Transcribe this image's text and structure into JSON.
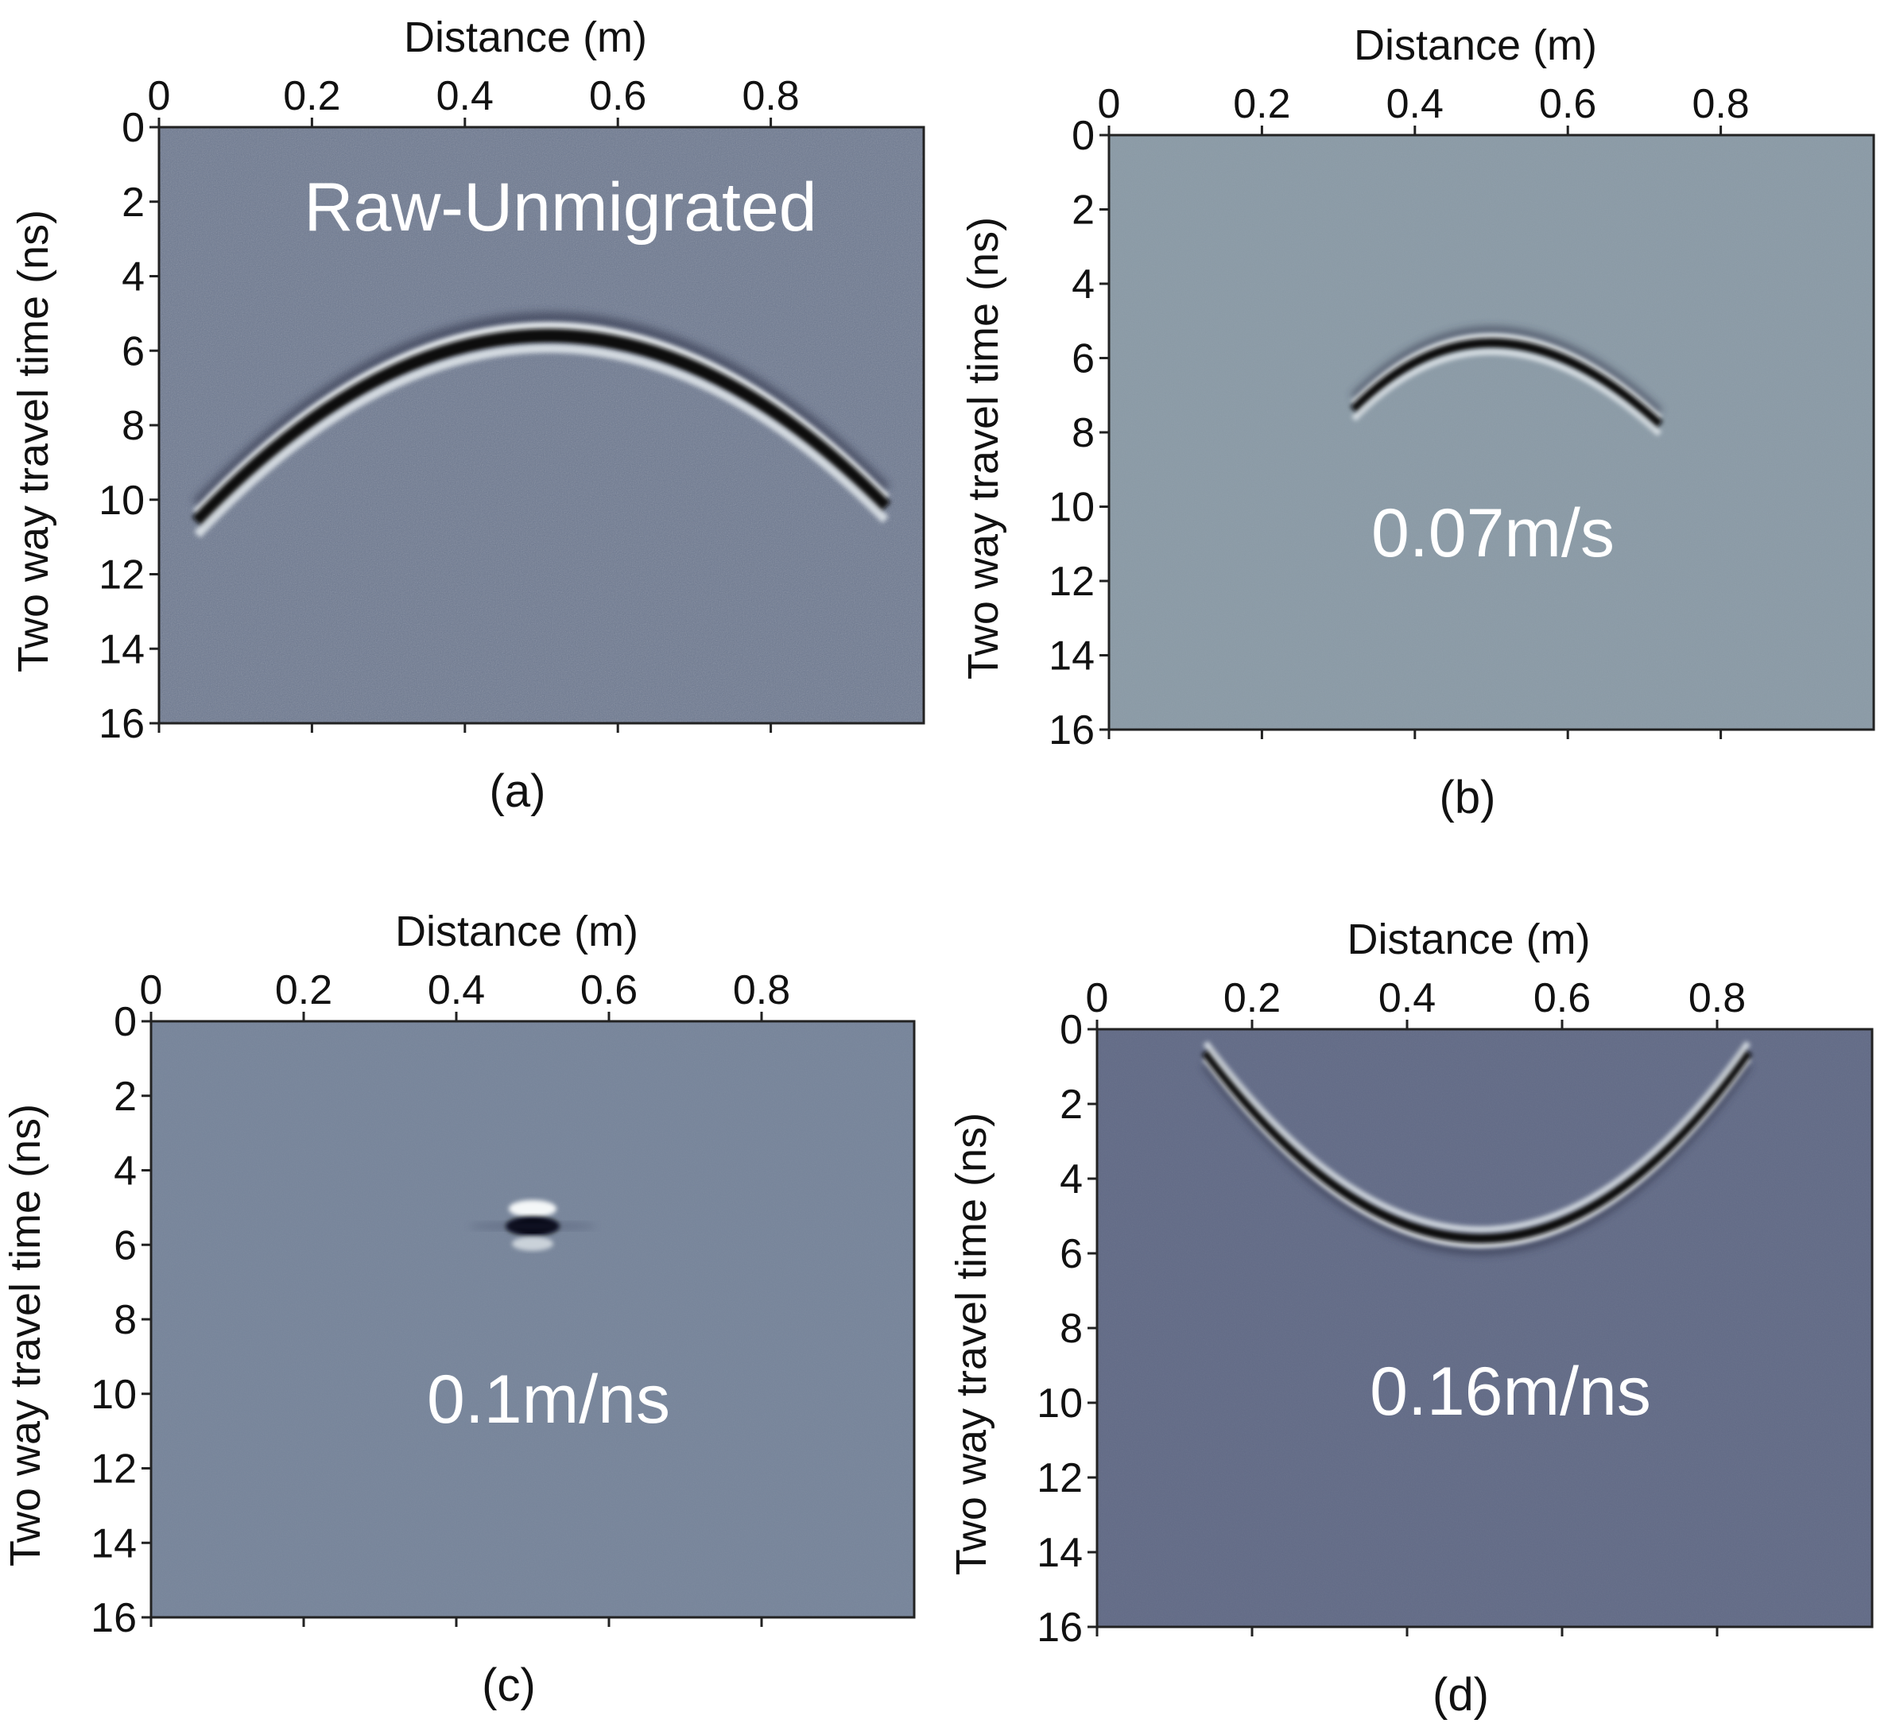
{
  "chart_data": [
    {
      "type": "heatmap",
      "panel_label": "(a)",
      "title": "",
      "xlabel": "Distance (m)",
      "ylabel": "Two way travel time (ns)",
      "xlim": [
        0,
        1.0
      ],
      "ylim": [
        0,
        16
      ],
      "x_ticks": [
        "0",
        "0.2",
        "0.4",
        "0.6",
        "0.8"
      ],
      "y_ticks": [
        "0",
        "2",
        "4",
        "6",
        "8",
        "10",
        "12",
        "14",
        "16"
      ],
      "annotation": "Raw-Unmigrated",
      "background_color": "#6c7890",
      "feature": {
        "shape": "hyperbola",
        "apex_x": 0.5,
        "apex_t": 5.6,
        "arm_left": [
          0.05,
          10.6
        ],
        "arm_right": [
          0.95,
          10.2
        ]
      },
      "grid": false
    },
    {
      "type": "heatmap",
      "panel_label": "(b)",
      "title": "",
      "xlabel": "Distance (m)",
      "ylabel": "Two way travel time (ns)",
      "xlim": [
        0,
        1.0
      ],
      "ylim": [
        0,
        16
      ],
      "x_ticks": [
        "0",
        "0.2",
        "0.4",
        "0.6",
        "0.8"
      ],
      "y_ticks": [
        "0",
        "2",
        "4",
        "6",
        "8",
        "10",
        "12",
        "14",
        "16"
      ],
      "annotation": "0.07m/s",
      "background_color": "#8a9aa6",
      "feature": {
        "shape": "hyperbola",
        "apex_x": 0.5,
        "apex_t": 5.6,
        "arm_left": [
          0.32,
          7.4
        ],
        "arm_right": [
          0.72,
          7.8
        ]
      },
      "grid": false
    },
    {
      "type": "heatmap",
      "panel_label": "(c)",
      "title": "",
      "xlabel": "Distance (m)",
      "ylabel": "Two way travel time (ns)",
      "xlim": [
        0,
        1.0
      ],
      "ylim": [
        0,
        16
      ],
      "x_ticks": [
        "0",
        "0.2",
        "0.4",
        "0.6",
        "0.8"
      ],
      "y_ticks": [
        "0",
        "2",
        "4",
        "6",
        "8",
        "10",
        "12",
        "14",
        "16"
      ],
      "annotation": "0.1m/ns",
      "background_color": "#76849a",
      "feature": {
        "shape": "point",
        "apex_x": 0.5,
        "apex_t": 5.5
      },
      "grid": false
    },
    {
      "type": "heatmap",
      "panel_label": "(d)",
      "title": "",
      "xlabel": "Distance (m)",
      "ylabel": "Two way travel time (ns)",
      "xlim": [
        0,
        1.0
      ],
      "ylim": [
        0,
        16
      ],
      "x_ticks": [
        "0",
        "0.2",
        "0.4",
        "0.6",
        "0.8"
      ],
      "y_ticks": [
        "0",
        "2",
        "4",
        "6",
        "8",
        "10",
        "12",
        "14",
        "16"
      ],
      "annotation": "0.16m/ns",
      "background_color": "#616a86",
      "feature": {
        "shape": "smile",
        "apex_x": 0.5,
        "apex_t": 5.6,
        "arm_left": [
          0.14,
          0.6
        ],
        "arm_right": [
          0.84,
          0.6
        ]
      },
      "grid": false
    }
  ]
}
